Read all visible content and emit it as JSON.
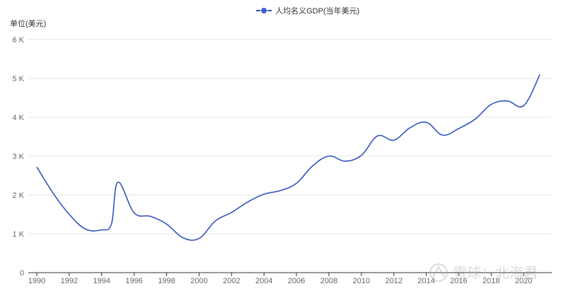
{
  "chart_data": {
    "type": "line",
    "ylabel": "单位(美元)",
    "ylim": [
      0,
      6000
    ],
    "yticks": [
      {
        "value": 0,
        "label": "0"
      },
      {
        "value": 1000,
        "label": "1 K"
      },
      {
        "value": 2000,
        "label": "2 K"
      },
      {
        "value": 3000,
        "label": "3 K"
      },
      {
        "value": 4000,
        "label": "4 K"
      },
      {
        "value": 5000,
        "label": "5 K"
      },
      {
        "value": 6000,
        "label": "6 K"
      }
    ],
    "xlim": [
      1989.9,
      2021.3
    ],
    "xticks": [
      "1990",
      "1992",
      "1994",
      "1996",
      "1998",
      "2000",
      "2002",
      "2004",
      "2006",
      "2008",
      "2010",
      "2012",
      "2014",
      "2016",
      "2018",
      "2020"
    ],
    "legend_position": "top-center",
    "grid": true,
    "series": [
      {
        "name": "人均名义GDP(当年美元)",
        "color": "#3355bb",
        "x": [
          1990,
          1991,
          1992,
          1993,
          1994,
          1994.6,
          1995,
          1996,
          1997,
          1998,
          1999,
          2000,
          2001,
          2002,
          2003,
          2004,
          2005,
          2006,
          2007,
          2008,
          2009,
          2010,
          2011,
          2012,
          2013,
          2014,
          2015,
          2016,
          2017,
          2018,
          2019,
          2020,
          2021
        ],
        "y": [
          2720,
          2050,
          1500,
          1120,
          1100,
          1250,
          2330,
          1540,
          1450,
          1250,
          900,
          880,
          1330,
          1550,
          1820,
          2020,
          2110,
          2300,
          2750,
          3000,
          2870,
          3020,
          3520,
          3410,
          3730,
          3870,
          3540,
          3710,
          3950,
          4330,
          4420,
          4300,
          5100
        ]
      }
    ]
  },
  "watermark": "雪球：北海君"
}
